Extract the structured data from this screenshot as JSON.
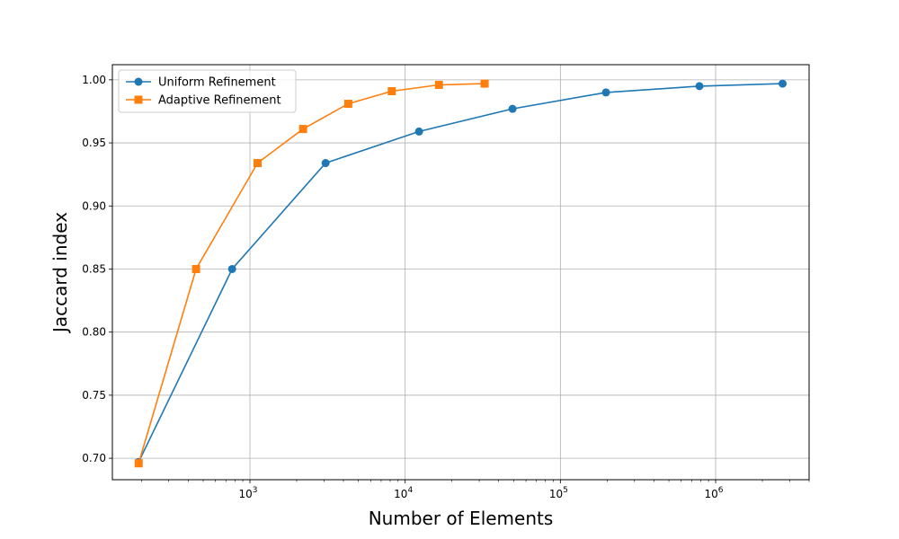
{
  "chart_data": {
    "type": "line",
    "title": "",
    "xlabel": "Number of Elements",
    "ylabel": "Jaccard index",
    "xscale": "log",
    "xlim": [
      130,
      4000000
    ],
    "ylim": [
      0.683,
      1.012
    ],
    "xticks": [
      {
        "value": 1000,
        "base": "10",
        "exp": "3"
      },
      {
        "value": 10000,
        "base": "10",
        "exp": "4"
      },
      {
        "value": 100000,
        "base": "10",
        "exp": "5"
      },
      {
        "value": 1000000,
        "base": "10",
        "exp": "6"
      }
    ],
    "yticks": [
      {
        "value": 0.7,
        "label": "0.70"
      },
      {
        "value": 0.75,
        "label": "0.75"
      },
      {
        "value": 0.8,
        "label": "0.80"
      },
      {
        "value": 0.85,
        "label": "0.85"
      },
      {
        "value": 0.9,
        "label": "0.90"
      },
      {
        "value": 0.95,
        "label": "0.95"
      },
      {
        "value": 1.0,
        "label": "1.00"
      }
    ],
    "grid": true,
    "legend_position": "top-left",
    "series": [
      {
        "name": "Uniform Refinement",
        "color": "#1f77b4",
        "marker": "circle",
        "x": [
          192,
          768,
          3072,
          12288,
          49152,
          196608,
          786432,
          2700000
        ],
        "y": [
          0.697,
          0.85,
          0.934,
          0.959,
          0.977,
          0.99,
          0.995,
          0.997
        ]
      },
      {
        "name": "Adaptive Refinement",
        "color": "#ff7f0e",
        "marker": "square",
        "x": [
          192,
          450,
          1120,
          2200,
          4300,
          8200,
          16500,
          32500
        ],
        "y": [
          0.696,
          0.85,
          0.934,
          0.961,
          0.981,
          0.991,
          0.996,
          0.997
        ]
      }
    ]
  }
}
